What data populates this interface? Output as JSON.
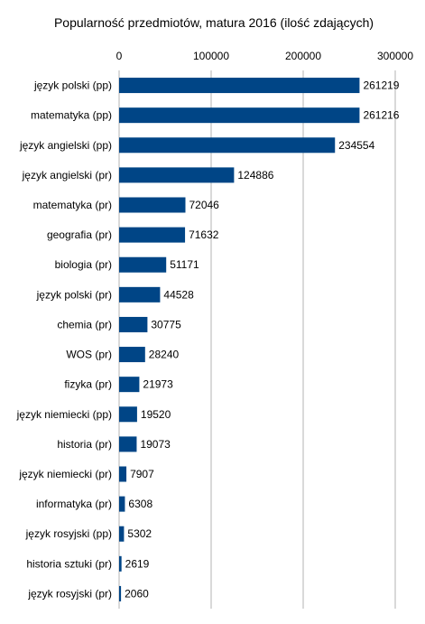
{
  "chart_data": {
    "type": "bar",
    "orientation": "horizontal",
    "title": "Popularność przedmiotów, matura 2016 (ilość zdających)",
    "xlabel": "",
    "ylabel": "",
    "xlim": [
      0,
      300000
    ],
    "x_ticks": [
      "0",
      "100000",
      "200000",
      "300000"
    ],
    "x_axis_position": "top",
    "grid": true,
    "bar_color": "#004586",
    "categories": [
      "język polski (pp)",
      "matematyka (pp)",
      "język angielski (pp)",
      "język angielski (pr)",
      "matematyka (pr)",
      "geografia (pr)",
      "biologia (pr)",
      "język polski (pr)",
      "chemia (pr)",
      "WOS (pr)",
      "fizyka (pr)",
      "język niemiecki (pp)",
      "historia (pr)",
      "język niemiecki (pr)",
      "informatyka (pr)",
      "język rosyjski (pp)",
      "historia sztuki (pr)",
      "język rosyjski (pr)"
    ],
    "values": [
      261219,
      261216,
      234554,
      124886,
      72046,
      71632,
      51171,
      44528,
      30775,
      28240,
      21973,
      19520,
      19073,
      7907,
      6308,
      5302,
      2619,
      2060
    ]
  }
}
